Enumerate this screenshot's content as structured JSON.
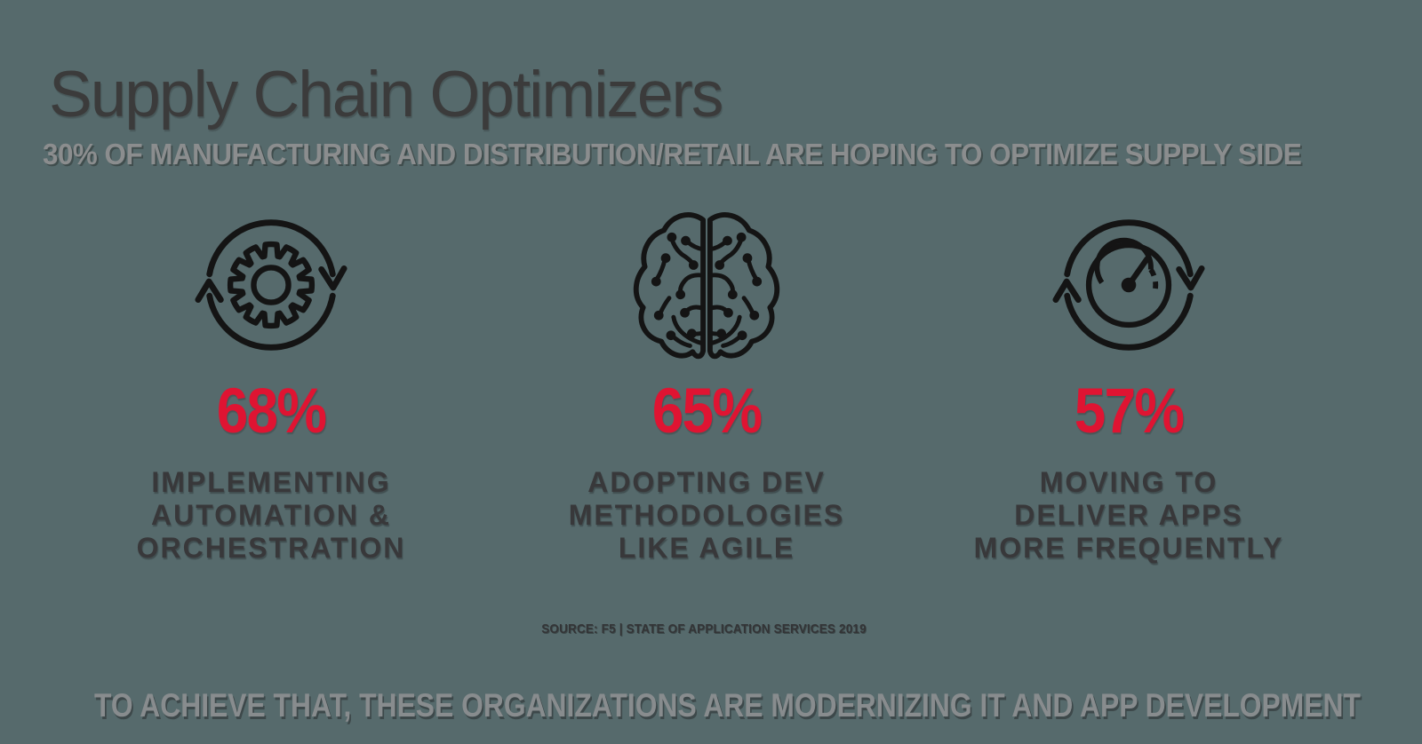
{
  "slide": {
    "title": "Supply Chain Optimizers",
    "subtitle": "30% OF MANUFACTURING AND DISTRIBUTION/RETAIL ARE HOPING TO OPTIMIZE SUPPLY SIDE",
    "source_line": "SOURCE: F5 | STATE OF APPLICATION SERVICES 2019",
    "footer": "TO ACHIEVE THAT, THESE ORGANIZATIONS ARE MODERNIZING IT AND APP DEVELOPMENT"
  },
  "stats": [
    {
      "icon": "automation-cycle-gear-icon",
      "value": "68%",
      "label_lines": [
        "IMPLEMENTING",
        "AUTOMATION &",
        "ORCHESTRATION"
      ]
    },
    {
      "icon": "ai-brain-circuit-icon",
      "value": "65%",
      "label_lines": [
        "ADOPTING DEV",
        "METHODOLOGIES",
        "LIKE AGILE"
      ]
    },
    {
      "icon": "gauge-cycle-icon",
      "value": "57%",
      "label_lines": [
        "MOVING TO",
        "DELIVER APPS",
        "MORE FREQUENTLY"
      ]
    }
  ],
  "colors": {
    "background": "#566a6c",
    "accent_red": "#df1432",
    "title_gray": "#3b3b3b",
    "muted_gray": "#8b8d8e",
    "label_dark": "#38383a",
    "icon_black": "#141414"
  },
  "chart_data": {
    "type": "bar",
    "title": "Supply Chain Optimizers",
    "subtitle": "30% of manufacturing and distribution/retail are hoping to optimize supply side",
    "categories": [
      "Implementing automation & orchestration",
      "Adopting dev methodologies like Agile",
      "Moving to deliver apps more frequently"
    ],
    "values": [
      68,
      65,
      57
    ],
    "unit": "%",
    "ylim": [
      0,
      100
    ],
    "legend": "none",
    "source": "F5 | State of Application Services 2019"
  }
}
